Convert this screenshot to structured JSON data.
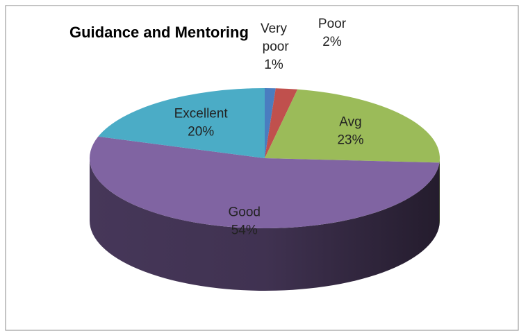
{
  "chart_data": {
    "type": "pie",
    "title": "Guidance and Mentoring",
    "categories": [
      "Very poor",
      "Poor",
      "Avg",
      "Good",
      "Excellent"
    ],
    "values": [
      1,
      2,
      23,
      54,
      20
    ],
    "value_labels": [
      "1%",
      "2%",
      "23%",
      "54%",
      "20%"
    ],
    "colors": [
      "#4a7dc0",
      "#c0504d",
      "#9bbb59",
      "#8064a2",
      "#4bacc6"
    ]
  }
}
